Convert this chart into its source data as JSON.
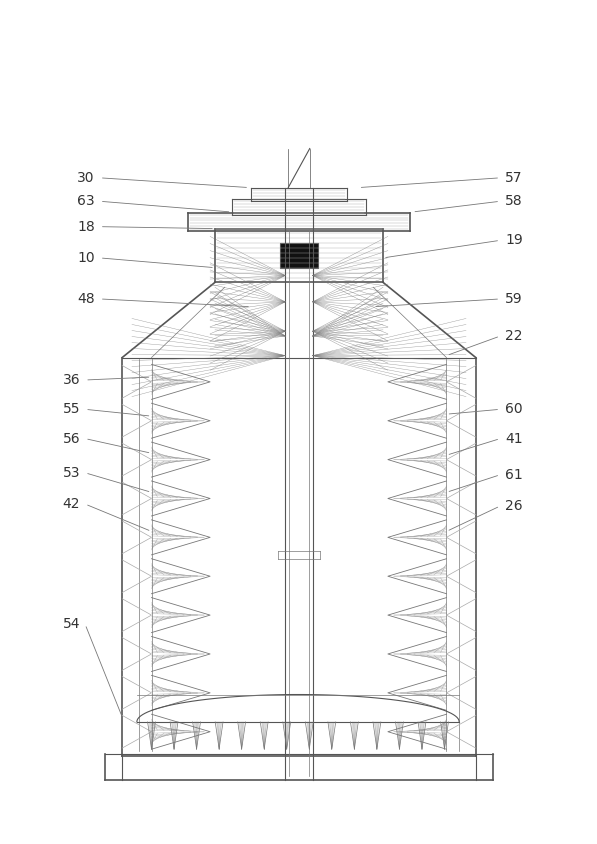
{
  "bg_color": "#ffffff",
  "line_color": "#aaaaaa",
  "dark_line": "#555555",
  "label_color": "#333333",
  "fig_width": 5.97,
  "fig_height": 8.44
}
